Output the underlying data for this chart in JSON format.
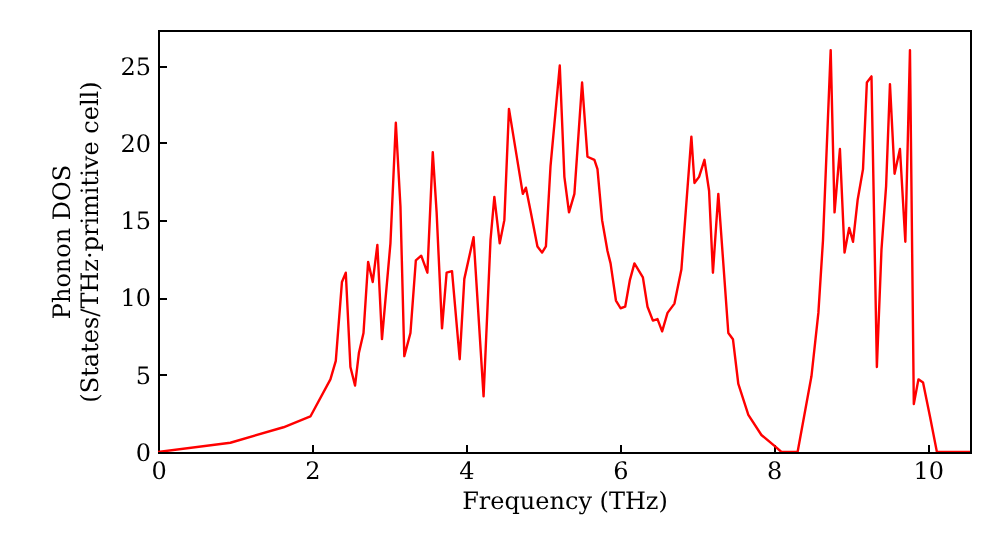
{
  "chart_data": {
    "type": "line",
    "xlabel": "Frequency (THz)",
    "ylabel": "Phonon DOS\n(States/THz·primitive cell)",
    "x": [
      0,
      0.94,
      1.63,
      1.98,
      2.24,
      2.31,
      2.39,
      2.44,
      2.5,
      2.56,
      2.61,
      2.67,
      2.73,
      2.79,
      2.85,
      2.91,
      3.02,
      3.09,
      3.15,
      3.2,
      3.28,
      3.35,
      3.42,
      3.5,
      3.57,
      3.62,
      3.69,
      3.75,
      3.82,
      3.92,
      3.98,
      4.1,
      4.23,
      4.32,
      4.37,
      4.44,
      4.5,
      4.56,
      4.74,
      4.78,
      4.84,
      4.93,
      4.99,
      5.04,
      5.1,
      5.22,
      5.28,
      5.34,
      5.41,
      5.51,
      5.58,
      5.67,
      5.71,
      5.77,
      5.84,
      5.88,
      5.95,
      6.01,
      6.07,
      6.13,
      6.19,
      6.3,
      6.36,
      6.43,
      6.49,
      6.55,
      6.62,
      6.71,
      6.8,
      6.93,
      6.97,
      7.03,
      7.1,
      7.16,
      7.21,
      7.28,
      7.41,
      7.47,
      7.54,
      7.67,
      7.84,
      8.01,
      8.1,
      8.31,
      8.49,
      8.58,
      8.64,
      8.74,
      8.79,
      8.86,
      8.92,
      8.98,
      9.03,
      9.09,
      9.16,
      9.21,
      9.27,
      9.34,
      9.4,
      9.46,
      9.51,
      9.57,
      9.64,
      9.71,
      9.77,
      9.82,
      9.88,
      9.94,
      10.03,
      10.12,
      10.55
    ],
    "series": [
      {
        "color": "#ff0000",
        "values": [
          0,
          0.6,
          1.6,
          2.3,
          4.7,
          5.9,
          11.0,
          11.6,
          5.5,
          4.3,
          6.4,
          7.7,
          12.3,
          11.0,
          13.4,
          7.3,
          13.5,
          21.3,
          15.9,
          6.2,
          7.7,
          12.4,
          12.7,
          11.6,
          19.4,
          15.5,
          8.0,
          11.6,
          11.7,
          6.0,
          11.2,
          13.9,
          3.6,
          13.7,
          16.5,
          13.5,
          15.0,
          22.2,
          16.7,
          17.1,
          15.6,
          13.3,
          12.9,
          13.3,
          18.5,
          25.0,
          17.8,
          15.5,
          16.7,
          23.9,
          19.1,
          18.9,
          18.3,
          15.0,
          13.0,
          12.2,
          9.8,
          9.3,
          9.4,
          11.1,
          12.2,
          11.3,
          9.4,
          8.5,
          8.6,
          7.8,
          9.0,
          9.6,
          11.8,
          20.4,
          17.4,
          17.8,
          18.9,
          16.9,
          11.6,
          16.7,
          7.7,
          7.3,
          4.4,
          2.4,
          1.1,
          0.4,
          0,
          0,
          4.9,
          9.0,
          13.7,
          26.0,
          15.5,
          19.6,
          12.9,
          14.5,
          13.6,
          16.3,
          18.3,
          23.9,
          24.3,
          5.5,
          13.1,
          17.2,
          23.8,
          18.0,
          19.6,
          13.6,
          26.0,
          3.1,
          4.7,
          4.5,
          2.3,
          0,
          0
        ]
      }
    ],
    "xlim": [
      0,
      10.55
    ],
    "ylim": [
      0,
      27.3
    ],
    "xticks": [
      0,
      2,
      4,
      6,
      8,
      10
    ],
    "yticks": [
      0,
      5,
      10,
      15,
      20,
      25
    ],
    "grid": false,
    "marker": "none",
    "line_style": "solid"
  }
}
